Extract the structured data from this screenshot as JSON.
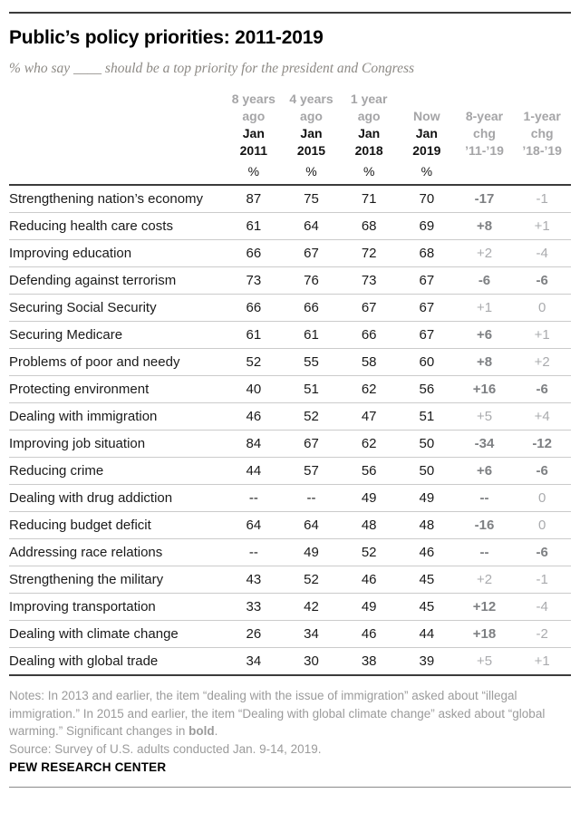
{
  "colors": {
    "text": "#1a1a1a",
    "header_gray": "#a5a5a7",
    "sig_change": "#7e8083",
    "nonsig_change": "#aaabae",
    "rule_dark": "#3b3b3b",
    "row_separator": "#cbcbcb"
  },
  "chart_data": {
    "type": "table",
    "title": "Public’s policy priorities: 2011-2019",
    "subtitle": "% who say ____ should be a top priority for the president and Congress",
    "column_labels": [
      "8 years ago Jan 2011 (%)",
      "4 years ago Jan 2015 (%)",
      "1 year ago Jan 2018 (%)",
      "Now Jan 2019 (%)",
      "8-year chg ’11-’19",
      "1-year chg ’18-’19"
    ],
    "header": {
      "columns": [
        {
          "lines": [
            "8 years",
            "ago",
            "Jan",
            "2011"
          ]
        },
        {
          "lines": [
            "4 years",
            "ago",
            "Jan",
            "2015"
          ]
        },
        {
          "lines": [
            "1 year",
            "ago",
            "Jan",
            "2018"
          ]
        },
        {
          "lines": [
            "",
            "Now",
            "Jan",
            "2019"
          ]
        },
        {
          "lines": [
            "",
            "8-year",
            "chg",
            "’11-’19"
          ]
        },
        {
          "lines": [
            "",
            "1-year",
            "chg",
            "’18-’19"
          ]
        }
      ],
      "percent_row": [
        "%",
        "%",
        "%",
        "%",
        "",
        ""
      ]
    },
    "rows": [
      {
        "label": "Strengthening nation’s economy",
        "values": [
          "87",
          "75",
          "71",
          "70"
        ],
        "chg8": "-17",
        "chg8_sig": true,
        "chg1": "-1",
        "chg1_sig": false
      },
      {
        "label": "Reducing health care costs",
        "values": [
          "61",
          "64",
          "68",
          "69"
        ],
        "chg8": "+8",
        "chg8_sig": true,
        "chg1": "+1",
        "chg1_sig": false
      },
      {
        "label": "Improving education",
        "values": [
          "66",
          "67",
          "72",
          "68"
        ],
        "chg8": "+2",
        "chg8_sig": false,
        "chg1": "-4",
        "chg1_sig": false
      },
      {
        "label": "Defending against terrorism",
        "values": [
          "73",
          "76",
          "73",
          "67"
        ],
        "chg8": "-6",
        "chg8_sig": true,
        "chg1": "-6",
        "chg1_sig": true
      },
      {
        "label": "Securing Social Security",
        "values": [
          "66",
          "66",
          "67",
          "67"
        ],
        "chg8": "+1",
        "chg8_sig": false,
        "chg1": "0",
        "chg1_sig": false
      },
      {
        "label": "Securing Medicare",
        "values": [
          "61",
          "61",
          "66",
          "67"
        ],
        "chg8": "+6",
        "chg8_sig": true,
        "chg1": "+1",
        "chg1_sig": false
      },
      {
        "label": "Problems of poor and needy",
        "values": [
          "52",
          "55",
          "58",
          "60"
        ],
        "chg8": "+8",
        "chg8_sig": true,
        "chg1": "+2",
        "chg1_sig": false
      },
      {
        "label": "Protecting environment",
        "values": [
          "40",
          "51",
          "62",
          "56"
        ],
        "chg8": "+16",
        "chg8_sig": true,
        "chg1": "-6",
        "chg1_sig": true
      },
      {
        "label": "Dealing with immigration",
        "values": [
          "46",
          "52",
          "47",
          "51"
        ],
        "chg8": "+5",
        "chg8_sig": false,
        "chg1": "+4",
        "chg1_sig": false
      },
      {
        "label": "Improving job situation",
        "values": [
          "84",
          "67",
          "62",
          "50"
        ],
        "chg8": "-34",
        "chg8_sig": true,
        "chg1": "-12",
        "chg1_sig": true
      },
      {
        "label": "Reducing crime",
        "values": [
          "44",
          "57",
          "56",
          "50"
        ],
        "chg8": "+6",
        "chg8_sig": true,
        "chg1": "-6",
        "chg1_sig": true
      },
      {
        "label": "Dealing with drug addiction",
        "values": [
          "--",
          "--",
          "49",
          "49"
        ],
        "chg8": "--",
        "chg8_sig": true,
        "chg1": "0",
        "chg1_sig": false
      },
      {
        "label": "Reducing budget deficit",
        "values": [
          "64",
          "64",
          "48",
          "48"
        ],
        "chg8": "-16",
        "chg8_sig": true,
        "chg1": "0",
        "chg1_sig": false
      },
      {
        "label": "Addressing race relations",
        "values": [
          "--",
          "49",
          "52",
          "46"
        ],
        "chg8": "--",
        "chg8_sig": true,
        "chg1": "-6",
        "chg1_sig": true
      },
      {
        "label": "Strengthening the military",
        "values": [
          "43",
          "52",
          "46",
          "45"
        ],
        "chg8": "+2",
        "chg8_sig": false,
        "chg1": "-1",
        "chg1_sig": false
      },
      {
        "label": "Improving transportation",
        "values": [
          "33",
          "42",
          "49",
          "45"
        ],
        "chg8": "+12",
        "chg8_sig": true,
        "chg1": "-4",
        "chg1_sig": false
      },
      {
        "label": "Dealing with climate change",
        "values": [
          "26",
          "34",
          "46",
          "44"
        ],
        "chg8": "+18",
        "chg8_sig": true,
        "chg1": "-2",
        "chg1_sig": false
      },
      {
        "label": "Dealing with global trade",
        "values": [
          "34",
          "30",
          "38",
          "39"
        ],
        "chg8": "+5",
        "chg8_sig": false,
        "chg1": "+1",
        "chg1_sig": false
      }
    ]
  },
  "notes": {
    "text1": "Notes: In 2013 and earlier, the item “dealing with the issue of immigration” asked about “illegal immigration.” In 2015 and earlier, the item “Dealing with global climate change” asked about “global warming.” Significant changes in ",
    "bold_word": "bold",
    "text2": ".",
    "source": "Source: Survey of U.S. adults conducted Jan. 9-14, 2019.",
    "brand": "PEW RESEARCH CENTER"
  }
}
